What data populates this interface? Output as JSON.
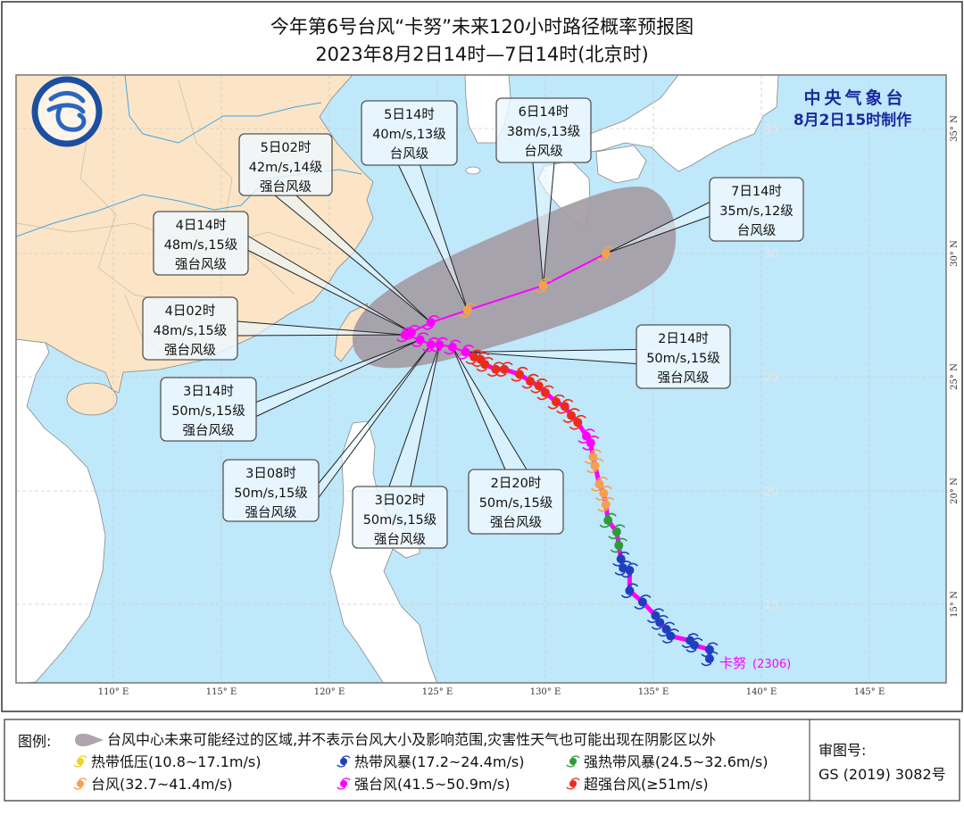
{
  "title": {
    "line1": "今年第6号台风“卡努”未来120小时路径概率预报图",
    "line2": "2023年8月2日14时—7日14时(北京时)"
  },
  "agency": {
    "name": "中央气象台",
    "issued": "8月2日15时制作"
  },
  "typhoon": {
    "name": "卡努",
    "id": "(2306)"
  },
  "axes": {
    "lon": [
      {
        "value": 110,
        "label": "110° E"
      },
      {
        "value": 115,
        "label": "115° E"
      },
      {
        "value": 120,
        "label": "120° E"
      },
      {
        "value": 125,
        "label": "125° E"
      },
      {
        "value": 130,
        "label": "130° E"
      },
      {
        "value": 135,
        "label": "135° E"
      },
      {
        "value": 140,
        "label": "140° E"
      },
      {
        "value": 145,
        "label": "145° E"
      }
    ],
    "lat": [
      {
        "value": 35,
        "label": "35° N"
      },
      {
        "value": 30,
        "label": "30° N"
      },
      {
        "value": 25,
        "label": "25° N"
      },
      {
        "value": 20,
        "label": "20° N"
      },
      {
        "value": 15,
        "label": "15° N"
      }
    ],
    "inner_lat_labels": [
      {
        "value": 35,
        "label": "35"
      },
      {
        "value": 30,
        "label": "30"
      },
      {
        "value": 25,
        "label": "25"
      },
      {
        "value": 20,
        "label": "20"
      },
      {
        "value": 15,
        "label": "15"
      }
    ]
  },
  "category_colors": {
    "TD": "#f2d21c",
    "TS": "#1f3fbf",
    "STS": "#2e9a3a",
    "TY": "#f7a04c",
    "STY": "#ff00ff",
    "SuperTY": "#ee2a1a"
  },
  "cone_color": "#a49ca6",
  "observed_track": [
    {
      "lon": 137.6,
      "lat": 12.6,
      "cat": "TS"
    },
    {
      "lon": 137.6,
      "lat": 13.0,
      "cat": "TS"
    },
    {
      "lon": 136.9,
      "lat": 13.2,
      "cat": "TS"
    },
    {
      "lon": 136.7,
      "lat": 13.4,
      "cat": "TS"
    },
    {
      "lon": 135.8,
      "lat": 13.6,
      "cat": "TS"
    },
    {
      "lon": 135.6,
      "lat": 13.9,
      "cat": "TS"
    },
    {
      "lon": 135.3,
      "lat": 14.2,
      "cat": "TS"
    },
    {
      "lon": 135.1,
      "lat": 14.5,
      "cat": "TS"
    },
    {
      "lon": 134.5,
      "lat": 15.1,
      "cat": "TS"
    },
    {
      "lon": 133.9,
      "lat": 15.6,
      "cat": "TS"
    },
    {
      "lon": 133.9,
      "lat": 16.5,
      "cat": "TS"
    },
    {
      "lon": 133.6,
      "lat": 16.6,
      "cat": "TS"
    },
    {
      "lon": 133.5,
      "lat": 17.0,
      "cat": "TS"
    },
    {
      "lon": 133.4,
      "lat": 17.6,
      "cat": "STS"
    },
    {
      "lon": 133.3,
      "lat": 18.2,
      "cat": "STS"
    },
    {
      "lon": 132.9,
      "lat": 18.7,
      "cat": "STS"
    },
    {
      "lon": 132.8,
      "lat": 19.4,
      "cat": "TY"
    },
    {
      "lon": 132.7,
      "lat": 19.9,
      "cat": "TY"
    },
    {
      "lon": 132.5,
      "lat": 20.3,
      "cat": "TY"
    },
    {
      "lon": 132.3,
      "lat": 21.1,
      "cat": "TY"
    },
    {
      "lon": 132.2,
      "lat": 21.5,
      "cat": "TY"
    },
    {
      "lon": 132.1,
      "lat": 22.1,
      "cat": "STY"
    },
    {
      "lon": 131.9,
      "lat": 22.4,
      "cat": "STY"
    },
    {
      "lon": 131.5,
      "lat": 23.0,
      "cat": "SuperTY"
    },
    {
      "lon": 131.2,
      "lat": 23.3,
      "cat": "SuperTY"
    },
    {
      "lon": 130.9,
      "lat": 23.7,
      "cat": "SuperTY"
    },
    {
      "lon": 130.5,
      "lat": 23.9,
      "cat": "SuperTY"
    },
    {
      "lon": 130.0,
      "lat": 24.3,
      "cat": "SuperTY"
    },
    {
      "lon": 129.7,
      "lat": 24.6,
      "cat": "SuperTY"
    },
    {
      "lon": 129.3,
      "lat": 24.8,
      "cat": "SuperTY"
    },
    {
      "lon": 128.8,
      "lat": 25.1,
      "cat": "SuperTY"
    },
    {
      "lon": 128.1,
      "lat": 25.3,
      "cat": "SuperTY"
    },
    {
      "lon": 127.7,
      "lat": 25.3,
      "cat": "SuperTY"
    },
    {
      "lon": 127.2,
      "lat": 25.5,
      "cat": "SuperTY"
    },
    {
      "lon": 127.0,
      "lat": 25.7,
      "cat": "SuperTY"
    },
    {
      "lon": 126.7,
      "lat": 25.8,
      "cat": "SuperTY"
    }
  ],
  "forecast": [
    {
      "time": "2日14时",
      "wind": "50m/s,15级",
      "grade": "强台风级",
      "lon": 126.3,
      "lat": 26.0,
      "cat": "STY"
    },
    {
      "time": "2日20时",
      "wind": "50m/s,15级",
      "grade": "强台风级",
      "lon": 125.7,
      "lat": 26.2,
      "cat": "STY"
    },
    {
      "time": "3日02时",
      "wind": "50m/s,15级",
      "grade": "强台风级",
      "lon": 125.1,
      "lat": 26.3,
      "cat": "STY"
    },
    {
      "time": "3日08时",
      "wind": "50m/s,15级",
      "grade": "强台风级",
      "lon": 124.7,
      "lat": 26.3,
      "cat": "STY"
    },
    {
      "time": "3日14时",
      "wind": "50m/s,15级",
      "grade": "强台风级",
      "lon": 124.2,
      "lat": 26.5,
      "cat": "STY"
    },
    {
      "time": "4日02时",
      "wind": "48m/s,15级",
      "grade": "强台风级",
      "lon": 123.5,
      "lat": 26.7,
      "cat": "STY"
    },
    {
      "time": "4日14时",
      "wind": "48m/s,15级",
      "grade": "强台风级",
      "lon": 123.8,
      "lat": 26.8,
      "cat": "STY"
    },
    {
      "time": "5日02时",
      "wind": "42m/s,14级",
      "grade": "强台风级",
      "lon": 124.7,
      "lat": 27.2,
      "cat": "STY"
    },
    {
      "time": "5日14时",
      "wind": "40m/s,13级",
      "grade": "台风级",
      "lon": 126.4,
      "lat": 27.7,
      "cat": "TY"
    },
    {
      "time": "6日14时",
      "wind": "38m/s,13级",
      "grade": "台风级",
      "lon": 129.9,
      "lat": 28.7,
      "cat": "TY"
    },
    {
      "time": "7日14时",
      "wind": "35m/s,12级",
      "grade": "台风级",
      "lon": 132.8,
      "lat": 30.0,
      "cat": "TY"
    }
  ],
  "legend": {
    "title": "图例:",
    "cone_text": "台风中心未来可能经过的区域,并不表示台风大小及影响范围,灾害性天气也可能出现在阴影区以外",
    "items": [
      {
        "cat": "TD",
        "label": "热带低压(10.8~17.1m/s)"
      },
      {
        "cat": "TS",
        "label": "热带风暴(17.2~24.4m/s)"
      },
      {
        "cat": "STS",
        "label": "强热带风暴(24.5~32.6m/s)"
      },
      {
        "cat": "TY",
        "label": "台风(32.7~41.4m/s)"
      },
      {
        "cat": "STY",
        "label": "强台风(41.5~50.9m/s)"
      },
      {
        "cat": "SuperTY",
        "label": "超强台风(≥51m/s)"
      }
    ],
    "review_label": "审图号:",
    "review_number": "GS (2019) 3082号"
  }
}
